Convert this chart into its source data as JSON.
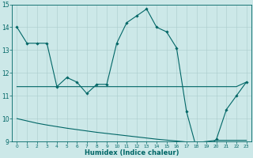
{
  "title": "",
  "xlabel": "Humidex (Indice chaleur)",
  "ylabel": "",
  "bg_color": "#cce8e8",
  "line_color": "#006666",
  "grid_color": "#aacccc",
  "xlim": [
    -0.5,
    23.5
  ],
  "ylim": [
    9,
    15
  ],
  "yticks": [
    9,
    10,
    11,
    12,
    13,
    14,
    15
  ],
  "xticks": [
    0,
    1,
    2,
    3,
    4,
    5,
    6,
    7,
    8,
    9,
    10,
    11,
    12,
    13,
    14,
    15,
    16,
    17,
    18,
    19,
    20,
    21,
    22,
    23
  ],
  "line1_x": [
    0,
    1,
    2,
    3,
    4,
    5,
    6,
    7,
    8,
    9,
    10,
    11,
    12,
    13,
    14,
    15,
    16,
    17,
    18,
    19,
    20,
    21,
    22,
    23
  ],
  "line1_y": [
    14.0,
    13.3,
    13.3,
    13.3,
    11.4,
    11.8,
    11.6,
    11.1,
    11.5,
    11.5,
    13.3,
    14.2,
    14.5,
    14.8,
    14.0,
    13.8,
    13.1,
    10.3,
    8.7,
    8.7,
    9.1,
    10.4,
    11.0,
    11.6
  ],
  "line2_x": [
    0,
    1,
    2,
    3,
    4,
    5,
    6,
    7,
    8,
    9,
    10,
    11,
    12,
    13,
    14,
    15,
    16,
    17,
    18,
    19,
    20,
    21,
    22,
    23
  ],
  "line2_y": [
    11.4,
    11.4,
    11.4,
    11.4,
    11.4,
    11.4,
    11.4,
    11.4,
    11.4,
    11.4,
    11.4,
    11.4,
    11.4,
    11.4,
    11.4,
    11.4,
    11.4,
    11.4,
    11.4,
    11.4,
    11.4,
    11.4,
    11.4,
    11.6
  ],
  "line3_x": [
    0,
    1,
    2,
    3,
    4,
    5,
    6,
    7,
    8,
    9,
    10,
    11,
    12,
    13,
    14,
    15,
    16,
    17,
    18,
    19,
    20,
    21,
    22,
    23
  ],
  "line3_y": [
    10.0,
    9.9,
    9.8,
    9.72,
    9.65,
    9.58,
    9.52,
    9.46,
    9.4,
    9.35,
    9.3,
    9.25,
    9.2,
    9.15,
    9.1,
    9.06,
    9.02,
    8.98,
    8.95,
    9.0,
    9.05,
    9.05,
    9.05,
    9.05
  ]
}
